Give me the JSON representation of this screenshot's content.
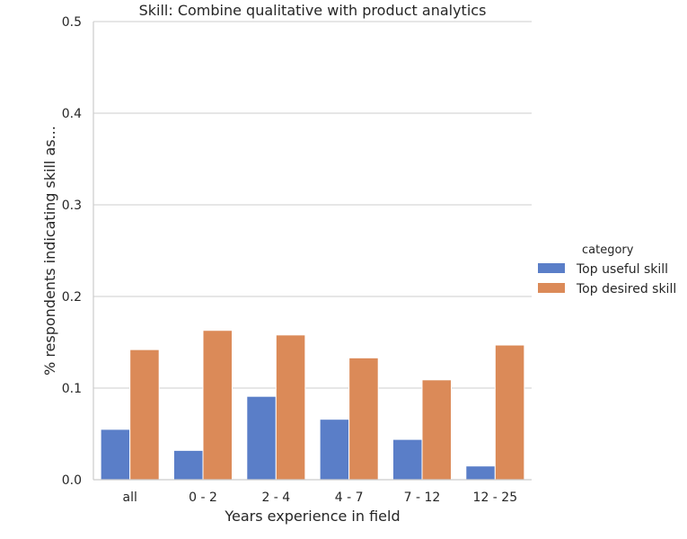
{
  "chart_data": {
    "type": "bar",
    "title": "Skill: Combine qualitative with product analytics",
    "xlabel": "Years experience in field",
    "ylabel": "% respondents indicating skill as...",
    "categories": [
      "all",
      "0 - 2",
      "2 - 4",
      "4 - 7",
      "7 - 12",
      "12 - 25"
    ],
    "ylim": [
      0,
      0.5
    ],
    "yticks": [
      "0.0",
      "0.1",
      "0.2",
      "0.3",
      "0.4",
      "0.5"
    ],
    "grid": "horizontal",
    "legend": {
      "title": "category",
      "placement": "right"
    },
    "series": [
      {
        "name": "Top useful skill",
        "color": "#5a7ec8",
        "values": [
          0.055,
          0.032,
          0.091,
          0.066,
          0.044,
          0.015
        ]
      },
      {
        "name": "Top desired skill",
        "color": "#db8a58",
        "values": [
          0.142,
          0.163,
          0.158,
          0.133,
          0.109,
          0.147
        ]
      }
    ]
  }
}
